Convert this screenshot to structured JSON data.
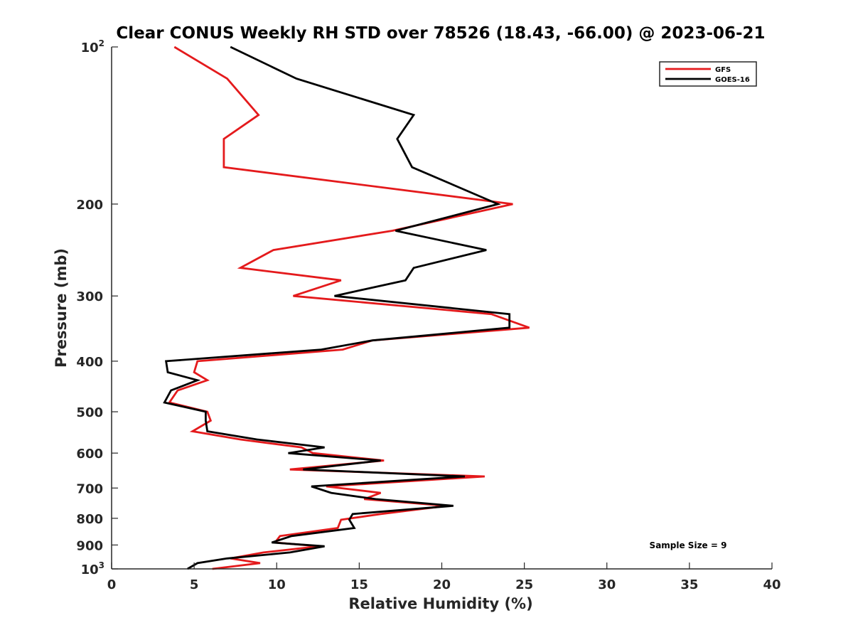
{
  "chart_data": {
    "type": "line",
    "title": "Clear CONUS Weekly RH STD over 78526 (18.43, -66.00) @ 2023-06-21",
    "xlabel": "Relative Humidity (%)",
    "ylabel": "Pressure (mb)",
    "xlim": [
      0,
      40
    ],
    "ylim": [
      100,
      1000
    ],
    "yscale": "log",
    "y_reversed": true,
    "grid": false,
    "legend_position": "top-right",
    "x_ticks": [
      "0",
      "5",
      "10",
      "15",
      "20",
      "25",
      "30",
      "35",
      "40"
    ],
    "y_ticks": [
      {
        "value": 100,
        "base": "10",
        "exp": "2"
      },
      {
        "value": 200,
        "label": "200"
      },
      {
        "value": 300,
        "label": "300"
      },
      {
        "value": 400,
        "label": "400"
      },
      {
        "value": 500,
        "label": "500"
      },
      {
        "value": 600,
        "label": "600"
      },
      {
        "value": 700,
        "label": "700"
      },
      {
        "value": 800,
        "label": "800"
      },
      {
        "value": 900,
        "label": "900"
      },
      {
        "value": 1000,
        "base": "10",
        "exp": "3"
      }
    ],
    "annotation": "Sample Size = 9",
    "series": [
      {
        "name": "GFS",
        "color": "#e41a1c",
        "points": [
          [
            3.8,
            100
          ],
          [
            7.0,
            115
          ],
          [
            8.9,
            135
          ],
          [
            6.8,
            150
          ],
          [
            6.8,
            170
          ],
          [
            24.3,
            200
          ],
          [
            17.0,
            225
          ],
          [
            9.8,
            245
          ],
          [
            7.8,
            265
          ],
          [
            13.9,
            280
          ],
          [
            11.0,
            300
          ],
          [
            23.0,
            325
          ],
          [
            25.3,
            345
          ],
          [
            15.8,
            365
          ],
          [
            14.0,
            380
          ],
          [
            5.2,
            400
          ],
          [
            5.0,
            420
          ],
          [
            5.8,
            435
          ],
          [
            4.0,
            455
          ],
          [
            3.5,
            480
          ],
          [
            5.8,
            500
          ],
          [
            6.0,
            520
          ],
          [
            4.9,
            545
          ],
          [
            7.8,
            565
          ],
          [
            11.5,
            585
          ],
          [
            12.2,
            600
          ],
          [
            16.5,
            620
          ],
          [
            10.8,
            645
          ],
          [
            22.6,
            665
          ],
          [
            13.0,
            695
          ],
          [
            16.3,
            715
          ],
          [
            15.3,
            735
          ],
          [
            20.3,
            757
          ],
          [
            16.3,
            785
          ],
          [
            13.9,
            805
          ],
          [
            13.7,
            835
          ],
          [
            10.2,
            865
          ],
          [
            9.9,
            890
          ],
          [
            12.6,
            905
          ],
          [
            9.2,
            930
          ],
          [
            7.2,
            955
          ],
          [
            9.0,
            975
          ],
          [
            6.1,
            1000
          ]
        ]
      },
      {
        "name": "GOES-16",
        "color": "#000000",
        "points": [
          [
            7.2,
            100
          ],
          [
            11.2,
            115
          ],
          [
            18.3,
            135
          ],
          [
            17.3,
            150
          ],
          [
            18.2,
            170
          ],
          [
            23.4,
            200
          ],
          [
            17.2,
            225
          ],
          [
            22.7,
            245
          ],
          [
            18.3,
            265
          ],
          [
            17.8,
            280
          ],
          [
            13.5,
            300
          ],
          [
            24.1,
            325
          ],
          [
            24.1,
            345
          ],
          [
            15.8,
            365
          ],
          [
            12.7,
            380
          ],
          [
            3.3,
            400
          ],
          [
            3.4,
            420
          ],
          [
            5.2,
            435
          ],
          [
            3.6,
            455
          ],
          [
            3.2,
            480
          ],
          [
            5.7,
            500
          ],
          [
            5.7,
            520
          ],
          [
            5.8,
            545
          ],
          [
            8.8,
            565
          ],
          [
            12.9,
            585
          ],
          [
            10.7,
            600
          ],
          [
            16.3,
            620
          ],
          [
            11.6,
            645
          ],
          [
            21.4,
            665
          ],
          [
            12.1,
            695
          ],
          [
            13.3,
            715
          ],
          [
            16.0,
            735
          ],
          [
            20.7,
            757
          ],
          [
            14.6,
            785
          ],
          [
            14.4,
            805
          ],
          [
            14.7,
            835
          ],
          [
            10.9,
            865
          ],
          [
            9.7,
            890
          ],
          [
            12.9,
            905
          ],
          [
            10.8,
            930
          ],
          [
            7.0,
            955
          ],
          [
            5.2,
            975
          ],
          [
            4.6,
            1000
          ]
        ]
      }
    ]
  }
}
